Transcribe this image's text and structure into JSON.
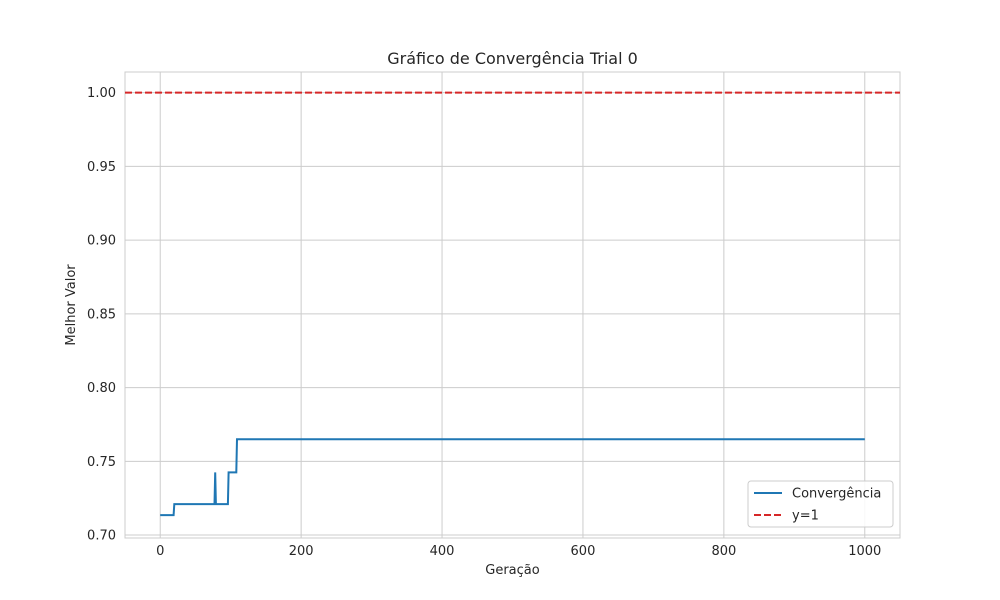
{
  "chart_data": {
    "type": "line",
    "title": "Gráfico de Convergência Trial 0",
    "xlabel": "Geração",
    "ylabel": "Melhor Valor",
    "xlim": [
      -50,
      1050
    ],
    "ylim": [
      0.698,
      1.014
    ],
    "xticks": [
      0,
      200,
      400,
      600,
      800,
      1000
    ],
    "xtick_labels": [
      "0",
      "200",
      "400",
      "600",
      "800",
      "1000"
    ],
    "yticks": [
      0.7,
      0.75,
      0.8,
      0.85,
      0.9,
      0.95,
      1.0
    ],
    "ytick_labels": [
      "0.70",
      "0.75",
      "0.80",
      "0.85",
      "0.90",
      "0.95",
      "1.00"
    ],
    "grid": true,
    "legend_position": "lower-right",
    "series": [
      {
        "name": "Convergência",
        "color": "#1f77b4",
        "style": "solid",
        "x": [
          0,
          19,
          20,
          77,
          78,
          79,
          96,
          97,
          108,
          109,
          1000
        ],
        "y": [
          0.7135,
          0.7135,
          0.721,
          0.721,
          0.7425,
          0.721,
          0.721,
          0.7425,
          0.7425,
          0.765,
          0.765
        ]
      },
      {
        "name": "y=1",
        "color": "#d62728",
        "style": "dashed",
        "x": [
          -50,
          1050
        ],
        "y": [
          1.0,
          1.0
        ]
      }
    ]
  }
}
